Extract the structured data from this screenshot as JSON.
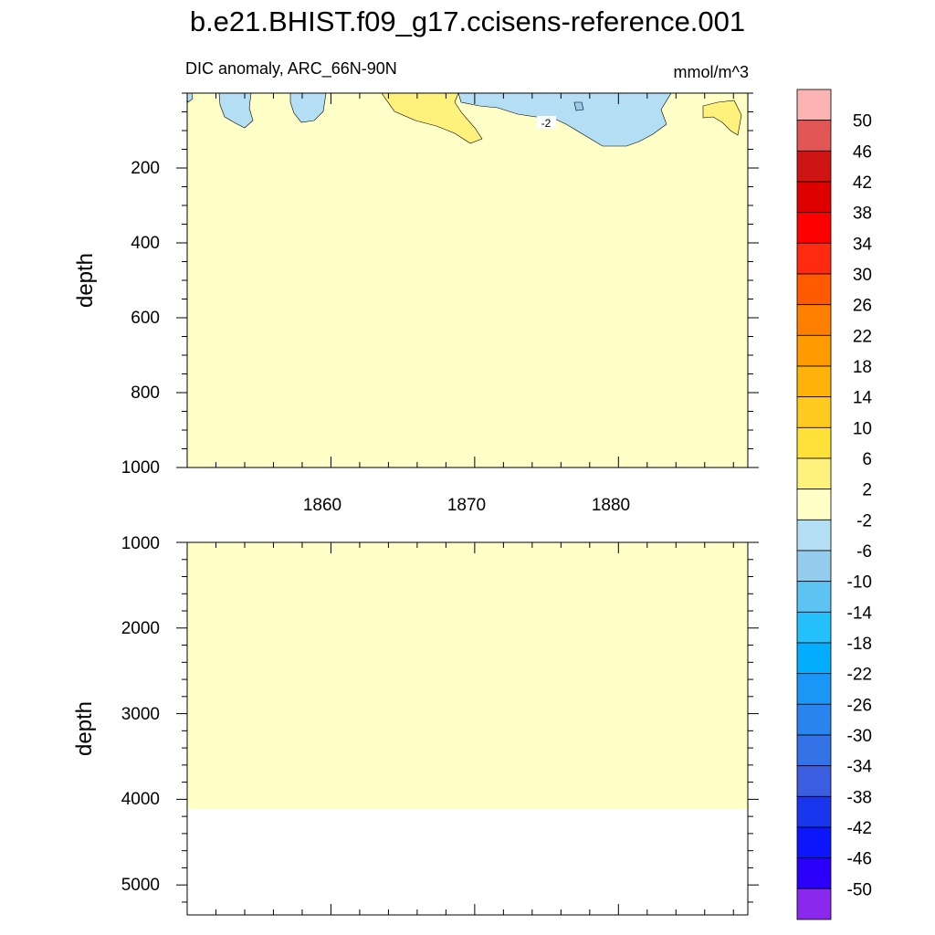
{
  "chart_data": {
    "type": "heatmap",
    "title": "b.e21.BHIST.f09_g17.ccisens-reference.001",
    "subtitle_left": "DIC anomaly, ARC_66N-90N",
    "subtitle_right": "mmol/m^3",
    "background_value_range": "-2 to 2",
    "contour_label": "-2",
    "x_range": [
      1850,
      1889
    ],
    "x_ticks": [
      "1860",
      "1870",
      "1880"
    ],
    "upper_panel": {
      "ylabel": "depth",
      "ylim": [
        0,
        1000
      ],
      "y_ticks": [
        "200",
        "400",
        "600",
        "800",
        "1000"
      ]
    },
    "lower_panel": {
      "ylabel": "depth",
      "ylim": [
        1000,
        5350
      ],
      "y_ticks": [
        "1000",
        "2000",
        "3000",
        "4000",
        "5000"
      ],
      "data_bottom_depth": 4130
    },
    "colorbar": {
      "labels": [
        "50",
        "46",
        "42",
        "38",
        "34",
        "30",
        "26",
        "22",
        "18",
        "14",
        "10",
        "6",
        "2",
        "-2",
        "-6",
        "-10",
        "-14",
        "-18",
        "-22",
        "-26",
        "-30",
        "-34",
        "-38",
        "-42",
        "-46",
        "-50"
      ],
      "colors": [
        "#fbb3b3",
        "#e25656",
        "#cf1414",
        "#df0000",
        "#fe0000",
        "#ff2a0f",
        "#ff5a00",
        "#ff7f00",
        "#ff9a00",
        "#ffb20a",
        "#ffca1f",
        "#ffe13a",
        "#fff27c",
        "#ffffc8",
        "#b4def4",
        "#96cdee",
        "#5cc3f2",
        "#23c0fb",
        "#04adfd",
        "#1a96f7",
        "#2a84f0",
        "#3472e8",
        "#3a5edf",
        "#1936ee",
        "#0d16fa",
        "#2a00fb",
        "#8a28ee"
      ]
    },
    "anomaly_regions": [
      {
        "kind": "negative",
        "value_range": "-6 to -2",
        "x": [
          1850.1,
          1850.4
        ],
        "depth": [
          0,
          15
        ]
      },
      {
        "kind": "negative",
        "value_range": "-6 to -2",
        "x": [
          1852.2,
          1854.8
        ],
        "depth": [
          0,
          90
        ]
      },
      {
        "kind": "negative",
        "value_range": "-6 to -2",
        "x": [
          1857.3,
          1859.4
        ],
        "depth": [
          0,
          75
        ]
      },
      {
        "kind": "positive",
        "value_range": "2 to 6",
        "x": [
          1864.3,
          1871.2
        ],
        "depth": [
          0,
          125
        ]
      },
      {
        "kind": "negative",
        "value_range": "-6 to -2",
        "x": [
          1868.9,
          1884.1
        ],
        "depth": [
          0,
          145
        ]
      },
      {
        "kind": "positive",
        "value_range": "2 to 6",
        "x": [
          1886.1,
          1888.8
        ],
        "depth": [
          0,
          115
        ]
      }
    ]
  }
}
